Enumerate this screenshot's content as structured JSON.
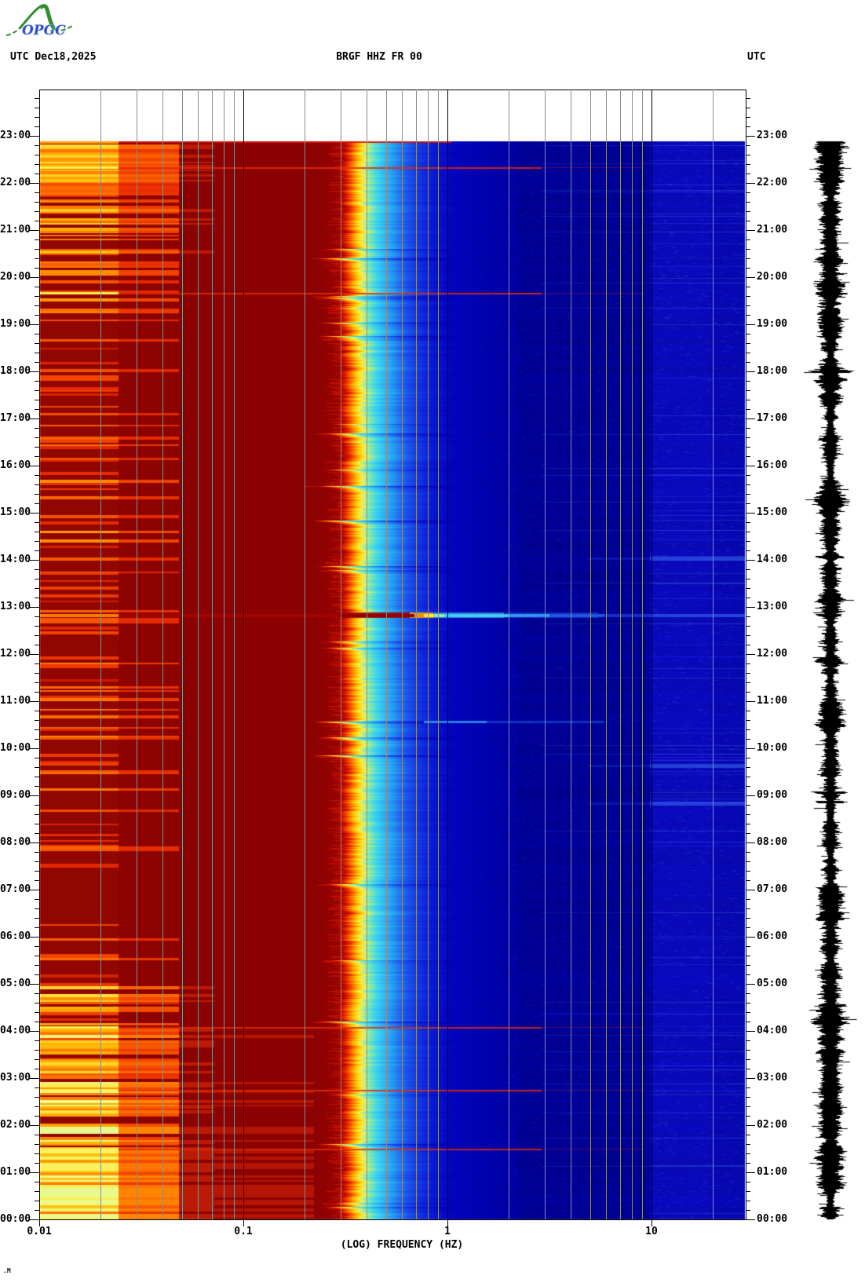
{
  "logo": {
    "text": "OPGC"
  },
  "header": {
    "utc_left": "UTC",
    "date": "Dec18,2025",
    "title": "BRGF HHZ FR 00",
    "utc_right": "UTC"
  },
  "x_axis": {
    "title": "(LOG) FREQUENCY (HZ)",
    "tick_labels": [
      "0.01",
      "0.1",
      "1",
      "10"
    ],
    "tick_values": [
      0.01,
      0.1,
      1,
      10
    ]
  },
  "y_axis": {
    "unit": "UTC",
    "labels_top_to_bottom": [
      "23:00",
      "22:00",
      "21:00",
      "20:00",
      "19:00",
      "18:00",
      "17:00",
      "16:00",
      "15:00",
      "14:00",
      "13:00",
      "12:00",
      "11:00",
      "10:00",
      "09:00",
      "08:00",
      "07:00",
      "06:00",
      "05:00",
      "04:00",
      "03:00",
      "02:00",
      "01:00",
      "00:00"
    ]
  },
  "footnote": ".M",
  "chart_data": {
    "type": "heatmap",
    "subtype": "seismic spectrogram with side seismogram trace",
    "station": "BRGF HHZ FR 00",
    "date_utc": "Dec18,2025",
    "xlabel": "(LOG) FREQUENCY (HZ)",
    "x_scale": "log",
    "x_range_hz": [
      0.01,
      30
    ],
    "x_major_gridlines_hz": [
      0.1,
      1,
      10
    ],
    "x_minor_gridlines_hz": [
      0.02,
      0.03,
      0.04,
      0.05,
      0.06,
      0.07,
      0.08,
      0.09,
      0.2,
      0.3,
      0.4,
      0.5,
      0.6,
      0.7,
      0.8,
      0.9,
      2,
      3,
      4,
      5,
      6,
      7,
      8,
      9,
      20
    ],
    "y_range_utc": [
      "00:00",
      "23:00"
    ],
    "y_major_tick_min": 60,
    "y_minor_tick_min": 12,
    "data_span_utc": [
      "00:00",
      "22:53"
    ],
    "colormap": "jet",
    "colors": {
      "low_band_bg": "#920602",
      "mid_bg": "#8c0202",
      "navy": "#000096",
      "mid_blue": "#0000a2",
      "hf_blue": "#0909bb",
      "grid_minor": "#8c8c8c",
      "grid_major": "#000000",
      "trace": "#000000"
    },
    "hourly_profiles": {
      "comment": "index 0 = 00:00-01:00 ... 22 = 22:00-23:00 UTC",
      "stripe_density": [
        0.95,
        0.95,
        0.9,
        0.85,
        0.6,
        0.3,
        0.3,
        0.3,
        0.35,
        0.4,
        0.35,
        0.3,
        0.3,
        0.3,
        0.4,
        0.35,
        0.35,
        0.3,
        0.35,
        0.5,
        0.55,
        0.7,
        0.8
      ],
      "stripe_brightness": [
        1.0,
        0.95,
        0.9,
        0.8,
        0.65,
        0.35,
        0.35,
        0.35,
        0.4,
        0.45,
        0.45,
        0.4,
        0.35,
        0.35,
        0.45,
        0.4,
        0.4,
        0.35,
        0.35,
        0.55,
        0.55,
        0.6,
        0.65
      ],
      "red_edge_burst": [
        0.7,
        0.6,
        0.5,
        0.4,
        0.4,
        0.3,
        0.3,
        0.3,
        0.3,
        0.5,
        0.7,
        0.5,
        0.3,
        0.3,
        0.4,
        0.3,
        0.3,
        0.3,
        0.4,
        0.8,
        0.8,
        0.6,
        0.5
      ],
      "hf_streaks": [
        0.6,
        0.5,
        0.5,
        0.3,
        0.4,
        0.4,
        0.5,
        0.3,
        0.5,
        0.8,
        0.5,
        0.3,
        0.3,
        0.5,
        0.6,
        0.3,
        0.25,
        0.25,
        0.3,
        0.4,
        0.5,
        0.5,
        0.4
      ],
      "trace_amplitude": [
        1.25,
        1.2,
        1.15,
        1.1,
        1.15,
        0.95,
        1.0,
        0.9,
        0.95,
        1.05,
        1.0,
        0.95,
        0.9,
        1.0,
        1.05,
        0.95,
        0.9,
        0.95,
        1.0,
        1.05,
        1.1,
        1.15,
        1.2
      ]
    },
    "events": [
      {
        "time_utc": "12:50",
        "kind": "broadband",
        "note": "strong event line extending to ~5 Hz"
      },
      {
        "time_utc": "10:34",
        "kind": "midband"
      },
      {
        "time_utc": "09:38",
        "kind": "high_freq"
      },
      {
        "time_utc": "14:02",
        "kind": "high_freq"
      },
      {
        "time_utc": "08:50",
        "kind": "high_freq"
      },
      {
        "time_utc": "04:05",
        "kind": "low_freq"
      },
      {
        "time_utc": "02:45",
        "kind": "low_freq"
      },
      {
        "time_utc": "01:30",
        "kind": "low_freq"
      },
      {
        "time_utc": "22:20",
        "kind": "low_freq"
      },
      {
        "time_utc": "19:40",
        "kind": "low_freq"
      }
    ],
    "side_trace": {
      "kind": "seismogram",
      "color": "#000000",
      "spikes_utc": [
        {
          "time": "18:00",
          "w": 30
        },
        {
          "time": "14:04",
          "w": 18
        },
        {
          "time": "13:49",
          "w": 14
        },
        {
          "time": "12:50",
          "w": 16
        },
        {
          "time": "09:04",
          "w": 22
        },
        {
          "time": "08:52",
          "w": 18
        },
        {
          "time": "06:12",
          "w": 12
        },
        {
          "time": "04:33",
          "w": 18
        },
        {
          "time": "02:04",
          "w": 14
        },
        {
          "time": "01:33",
          "w": 12
        },
        {
          "time": "21:12",
          "w": 12
        },
        {
          "time": "10:33",
          "w": 12
        },
        {
          "time": "19:46",
          "w": 10
        },
        {
          "time": "15:40",
          "w": 10
        },
        {
          "time": "05:48",
          "w": 10
        },
        {
          "time": "00:15",
          "w": 12
        }
      ]
    }
  }
}
